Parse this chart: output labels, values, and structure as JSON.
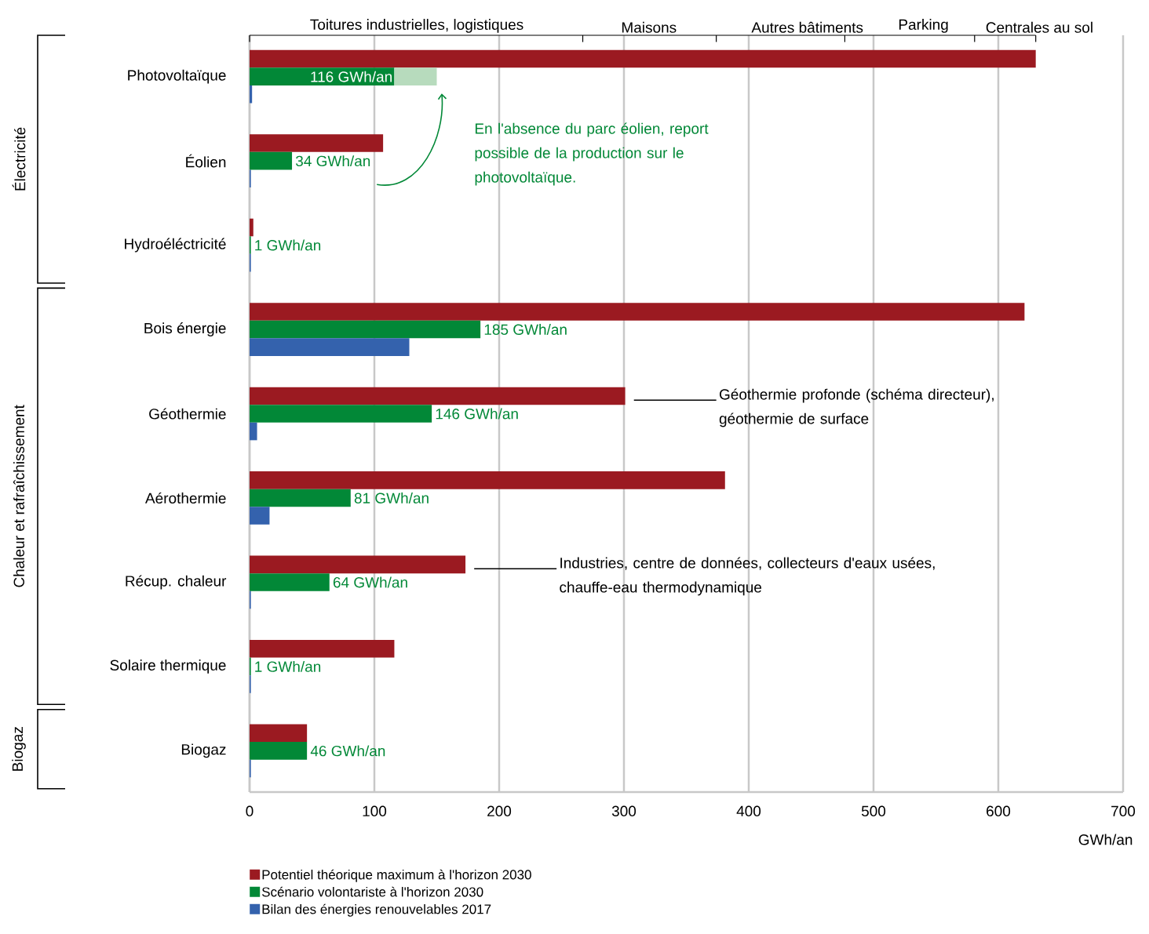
{
  "chart_data": {
    "type": "bar",
    "orientation": "horizontal",
    "categories": [
      "Photovoltaïque",
      "Éolien",
      "Hydroéléctricité",
      "Bois énergie",
      "Géothermie",
      "Aérothermie",
      "Récup. chaleur",
      "Solaire thermique",
      "Biogaz"
    ],
    "series": [
      {
        "name": "Potentiel théorique maximum à l'horizon 2030",
        "color": "#9b1a21",
        "values": [
          630,
          107,
          3,
          621,
          301,
          381,
          173,
          116,
          46
        ]
      },
      {
        "name": "Scénario volontariste à l'horizon 2030",
        "color": "#028837",
        "values": [
          116,
          34,
          1,
          185,
          146,
          81,
          64,
          1,
          46
        ],
        "value_labels": [
          "116 GWh/an",
          "34 GWh/an",
          "1 GWh/an",
          "185 GWh/an",
          "146 GWh/an",
          "81 GWh/an",
          "64 GWh/an",
          "1 GWh/an",
          "46 GWh/an"
        ]
      },
      {
        "color": "#b7dbbd",
        "values": [
          34,
          null,
          null,
          null,
          null,
          null,
          null,
          null,
          null
        ],
        "base": [
          116,
          null,
          null,
          null,
          null,
          null,
          null,
          null,
          null
        ]
      },
      {
        "name": "Bilan des énergies renouvelables 2017",
        "color": "#3462ad",
        "values": [
          2,
          1,
          1,
          128,
          6,
          16,
          1,
          1,
          1
        ]
      }
    ],
    "xlim": [
      0,
      700
    ],
    "xticks": [
      0,
      100,
      200,
      300,
      400,
      500,
      600,
      700
    ],
    "xlabel": "GWh/an",
    "grid": "x",
    "legend": "bottom left",
    "annotations": [
      "Toitures industrielles, logistiques",
      "Maisons",
      "Autres bâtiments",
      "Parking",
      "Centrales au sol",
      "Électricité",
      "Chaleur et rafraîchissement",
      "Biogaz",
      "En l'absence du parc éolien, report possible de la production sur le photovoltaïque.",
      "Géothermie profonde (schéma directeur), géothermie de surface",
      "Industries, centre de données, collecteurs d'eaux usées, chauffe-eau thermodynamique"
    ]
  }
}
